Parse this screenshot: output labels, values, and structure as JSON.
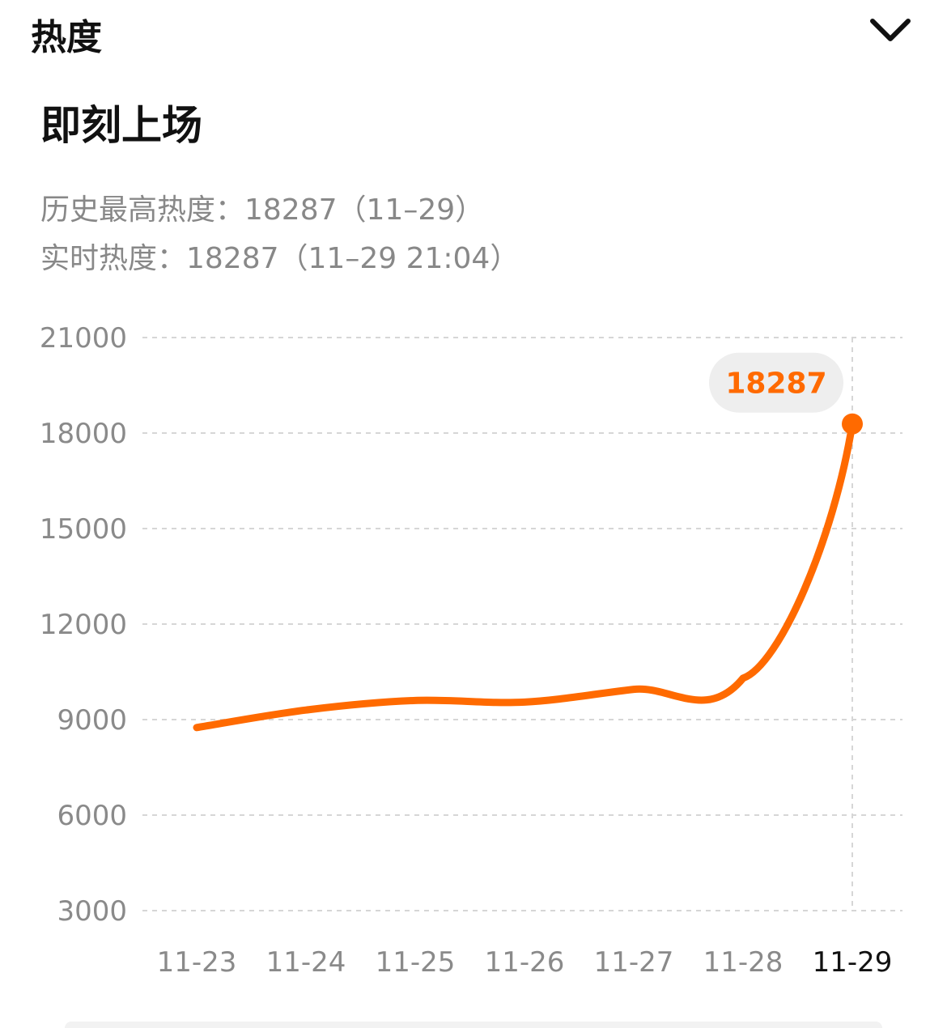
{
  "header": {
    "title": "热度"
  },
  "card": {
    "name": "即刻上场",
    "peak_label": "历史最高热度：18287（11–29）",
    "realtime_label": "实时热度：18287（11–29 21:04）"
  },
  "colors": {
    "line": "#ff6a00",
    "grid": "#d6d6d6",
    "bubble_bg": "#eeeeee",
    "active_label": "#111111",
    "axis_label": "#8a8a8a"
  },
  "icons": {
    "collapse": "chevron-down-icon"
  },
  "chart_data": {
    "type": "line",
    "categories": [
      "11-23",
      "11-24",
      "11-25",
      "11-26",
      "11-27",
      "11-28",
      "11-29"
    ],
    "series": [
      {
        "values": [
          8750,
          9300,
          9600,
          9550,
          9950,
          10300,
          18287
        ]
      }
    ],
    "yticks": [
      3000,
      6000,
      9000,
      12000,
      15000,
      18000,
      21000
    ],
    "ylim": [
      3000,
      21000
    ],
    "grid": true,
    "highlight": {
      "category": "11-29",
      "label": "18287"
    }
  }
}
